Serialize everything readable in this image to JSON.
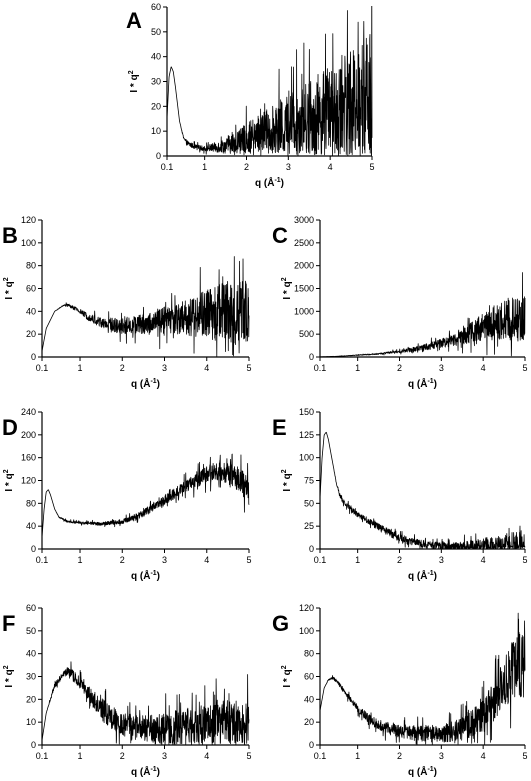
{
  "chart_data": [
    {
      "panel": "A",
      "type": "line",
      "xlabel": "q (Å",
      "xlabel_sup": "-1",
      "xlabel_close": ")",
      "ylabel": "I * q",
      "ylabel_sup": "2",
      "xticks": [
        0.1,
        1,
        2,
        3,
        4,
        5
      ],
      "xlim": [
        0.1,
        5
      ],
      "yticks": [
        0,
        10,
        20,
        30,
        40,
        50,
        60
      ],
      "ylim": [
        0,
        60
      ],
      "series": [
        {
          "x": [
            0.1,
            0.15,
            0.2,
            0.25,
            0.3,
            0.4,
            0.5,
            0.6,
            0.8,
            1.0,
            1.5,
            2.0,
            2.5,
            3.0,
            3.5,
            4.0,
            4.5,
            4.8,
            4.9,
            5.0
          ],
          "y": [
            15,
            32,
            36,
            34,
            28,
            14,
            7,
            5,
            3.5,
            3,
            4,
            7,
            10,
            13,
            16,
            18,
            20,
            22,
            24,
            22
          ],
          "noise": [
            0,
            0,
            0,
            0,
            0,
            0,
            0.5,
            1,
            1,
            1,
            3,
            6,
            9,
            12,
            15,
            18,
            22,
            25,
            28,
            26
          ]
        }
      ]
    },
    {
      "panel": "B",
      "type": "line",
      "xlabel": "q (Å",
      "xlabel_sup": "-1",
      "xlabel_close": ")",
      "ylabel": "I * q",
      "ylabel_sup": "2",
      "xticks": [
        0.1,
        1,
        2,
        3,
        4,
        5
      ],
      "xlim": [
        0.1,
        5
      ],
      "yticks": [
        0,
        20,
        40,
        60,
        80,
        100,
        120
      ],
      "ylim": [
        0,
        120
      ],
      "series": [
        {
          "x": [
            0.1,
            0.2,
            0.4,
            0.6,
            0.7,
            0.8,
            1.0,
            1.2,
            1.5,
            2.0,
            2.5,
            3.0,
            3.5,
            4.0,
            4.5,
            5.0
          ],
          "y": [
            5,
            25,
            40,
            45,
            46,
            44,
            40,
            35,
            30,
            27,
            29,
            32,
            35,
            38,
            40,
            38
          ],
          "noise": [
            0,
            0,
            0,
            0.5,
            1,
            1.5,
            2,
            3,
            5,
            7,
            9,
            12,
            16,
            22,
            28,
            30
          ]
        }
      ]
    },
    {
      "panel": "C",
      "type": "line",
      "xlabel": "q (Å",
      "xlabel_sup": "-1",
      "xlabel_close": ")",
      "ylabel": "I * q",
      "ylabel_sup": "2",
      "xticks": [
        0.1,
        1,
        2,
        3,
        4,
        5
      ],
      "xlim": [
        0.1,
        5
      ],
      "yticks": [
        0,
        500,
        1000,
        1500,
        2000,
        2500,
        3000
      ],
      "ylim": [
        0,
        3000
      ],
      "series": [
        {
          "x": [
            0.1,
            0.5,
            1.0,
            1.5,
            2.0,
            2.5,
            3.0,
            3.5,
            4.0,
            4.5,
            5.0
          ],
          "y": [
            5,
            15,
            40,
            70,
            120,
            190,
            300,
            450,
            650,
            850,
            800
          ],
          "noise": [
            0,
            3,
            8,
            15,
            30,
            60,
            100,
            180,
            300,
            450,
            550
          ]
        }
      ]
    },
    {
      "panel": "D",
      "type": "line",
      "xlabel": "q (Å",
      "xlabel_sup": "-1",
      "xlabel_close": ")",
      "ylabel": "I * q",
      "ylabel_sup": "2",
      "xticks": [
        0.1,
        1,
        2,
        3,
        4,
        5
      ],
      "xlim": [
        0.1,
        5
      ],
      "yticks": [
        0,
        40,
        80,
        120,
        160,
        200,
        240
      ],
      "ylim": [
        0,
        240
      ],
      "series": [
        {
          "x": [
            0.1,
            0.15,
            0.2,
            0.25,
            0.3,
            0.4,
            0.5,
            0.7,
            1.0,
            1.5,
            2.0,
            2.5,
            3.0,
            3.5,
            4.0,
            4.3,
            4.6,
            4.8,
            5.0
          ],
          "y": [
            20,
            70,
            100,
            104,
            95,
            70,
            56,
            48,
            46,
            44,
            48,
            62,
            85,
            110,
            130,
            138,
            130,
            120,
            100
          ],
          "noise": [
            0,
            0,
            0,
            0,
            0,
            0,
            1,
            2,
            2,
            3,
            4,
            6,
            8,
            11,
            15,
            18,
            20,
            22,
            25
          ]
        }
      ]
    },
    {
      "panel": "E",
      "type": "line",
      "xlabel": "q (Å",
      "xlabel_sup": "-1",
      "xlabel_close": ")",
      "ylabel": "I * q",
      "ylabel_sup": "2",
      "xticks": [
        0.1,
        1,
        2,
        3,
        4,
        5
      ],
      "xlim": [
        0.1,
        5
      ],
      "yticks": [
        0,
        25,
        50,
        75,
        100,
        125,
        150
      ],
      "ylim": [
        0,
        150
      ],
      "series": [
        {
          "x": [
            0.1,
            0.15,
            0.2,
            0.25,
            0.3,
            0.4,
            0.5,
            0.6,
            0.8,
            1.0,
            1.5,
            2.0,
            2.5,
            3.0,
            3.5,
            4.0,
            4.5,
            5.0
          ],
          "y": [
            55,
            100,
            125,
            128,
            120,
            95,
            70,
            55,
            45,
            38,
            24,
            12,
            6,
            3,
            2,
            2,
            3,
            4
          ],
          "noise": [
            0,
            0,
            0,
            0,
            0,
            0,
            1,
            2,
            3,
            3,
            4,
            4,
            4,
            4,
            6,
            10,
            14,
            18
          ]
        }
      ]
    },
    {
      "panel": "F",
      "type": "line",
      "xlabel": "q (Å",
      "xlabel_sup": "-1",
      "xlabel_close": ")",
      "ylabel": "I * q",
      "ylabel_sup": "2",
      "xticks": [
        0.1,
        1,
        2,
        3,
        4,
        5
      ],
      "xlim": [
        0.1,
        5
      ],
      "yticks": [
        0,
        10,
        20,
        30,
        40,
        50,
        60
      ],
      "ylim": [
        0,
        60
      ],
      "series": [
        {
          "x": [
            0.1,
            0.2,
            0.4,
            0.6,
            0.7,
            0.8,
            1.0,
            1.3,
            1.6,
            2.0,
            2.5,
            3.0,
            3.5,
            4.0,
            4.5,
            5.0
          ],
          "y": [
            2,
            14,
            26,
            31,
            32,
            31,
            27,
            20,
            14,
            9,
            7,
            7,
            8,
            9,
            9,
            8
          ],
          "noise": [
            0,
            0,
            1,
            1.5,
            2,
            2.5,
            3,
            4,
            5,
            5,
            6,
            7,
            8,
            10,
            11,
            11
          ]
        }
      ]
    },
    {
      "panel": "G",
      "type": "line",
      "xlabel": "q (Å",
      "xlabel_sup": "-1",
      "xlabel_close": ")",
      "ylabel": "I * q",
      "ylabel_sup": "2",
      "xticks": [
        0.1,
        1,
        2,
        3,
        4,
        5
      ],
      "xlim": [
        0.1,
        5
      ],
      "yticks": [
        0,
        20,
        40,
        60,
        80,
        100,
        120
      ],
      "ylim": [
        0,
        120
      ],
      "series": [
        {
          "x": [
            0.1,
            0.2,
            0.3,
            0.4,
            0.5,
            0.7,
            1.0,
            1.3,
            1.6,
            2.0,
            2.5,
            3.0,
            3.5,
            4.0,
            4.3,
            4.6,
            4.8,
            5.0
          ],
          "y": [
            30,
            50,
            57,
            59,
            56,
            46,
            32,
            22,
            16,
            12,
            10,
            10,
            14,
            25,
            40,
            58,
            72,
            70
          ],
          "noise": [
            0,
            0,
            0.5,
            1,
            1.5,
            2,
            3,
            4,
            5,
            6,
            7,
            8,
            10,
            14,
            20,
            25,
            28,
            30
          ]
        }
      ]
    }
  ]
}
